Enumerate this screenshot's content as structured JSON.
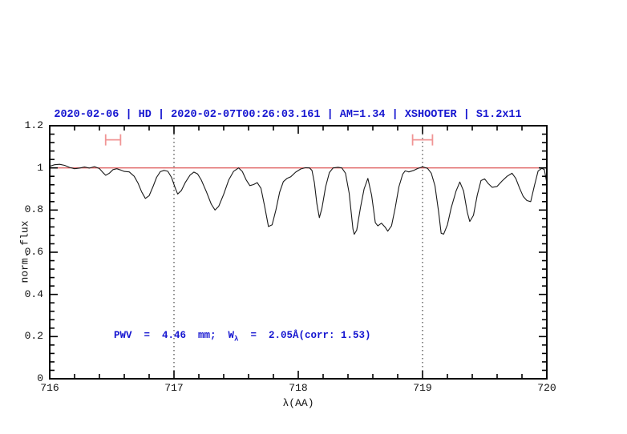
{
  "chart_data": {
    "type": "line",
    "title": "2020-02-06 | HD | 2020-02-07T00:26:03.161 | AM=1.34 | XSHOOTER | S1.2x11",
    "xlabel": "λ(AA)",
    "ylabel": "norm. flux",
    "xlim": [
      716,
      720
    ],
    "ylim": [
      0,
      1.2
    ],
    "grid": "off",
    "legend": "none",
    "x_ticks": {
      "major": [
        716,
        717,
        718,
        719,
        720
      ],
      "labels": [
        "716",
        "717",
        "718",
        "719",
        "720"
      ],
      "minor_step": 0.2
    },
    "y_ticks": {
      "major": [
        0,
        0.2,
        0.4,
        0.6,
        0.8,
        1,
        1.2
      ],
      "labels": [
        "0",
        "0.2",
        "0.4",
        "0.6",
        "0.8",
        "1",
        "1.2"
      ],
      "minor_step": 0.04
    },
    "dotted_vlines": [
      717,
      719
    ],
    "continuum_line_y": 1.0,
    "range_markers": [
      {
        "x_start": 716.45,
        "x_end": 716.57,
        "y": 1.133
      },
      {
        "x_start": 718.92,
        "x_end": 719.08,
        "y": 1.133
      }
    ],
    "annotation": {
      "text_full": "PWV  =  4.46  mm;  Wλ  =  2.05Å(corr: 1.53)",
      "pre": "PWV  =  4.46  mm;  W",
      "sub": "λ",
      "post": "  =  2.05Å(corr: 1.53)"
    },
    "colors": {
      "title_text": "#1515d0",
      "annotation_text": "#1515d0",
      "spectrum_line": "#1a1a1a",
      "continuum_line": "#e06565",
      "range_marker": "#f09595",
      "axis": "#000000",
      "dotted_line": "#444444"
    },
    "series": [
      {
        "name": "spectrum",
        "points": [
          [
            716.0,
            1.008
          ],
          [
            716.04,
            1.015
          ],
          [
            716.08,
            1.017
          ],
          [
            716.12,
            1.012
          ],
          [
            716.16,
            1.002
          ],
          [
            716.2,
            0.996
          ],
          [
            716.24,
            0.999
          ],
          [
            716.28,
            1.004
          ],
          [
            716.32,
            0.999
          ],
          [
            716.36,
            1.006
          ],
          [
            716.4,
            0.997
          ],
          [
            716.43,
            0.977
          ],
          [
            716.45,
            0.965
          ],
          [
            716.48,
            0.975
          ],
          [
            716.51,
            0.992
          ],
          [
            716.54,
            0.996
          ],
          [
            716.57,
            0.99
          ],
          [
            716.6,
            0.983
          ],
          [
            716.64,
            0.981
          ],
          [
            716.68,
            0.96
          ],
          [
            716.71,
            0.928
          ],
          [
            716.74,
            0.886
          ],
          [
            716.77,
            0.855
          ],
          [
            716.8,
            0.868
          ],
          [
            716.83,
            0.91
          ],
          [
            716.86,
            0.955
          ],
          [
            716.89,
            0.982
          ],
          [
            716.92,
            0.988
          ],
          [
            716.95,
            0.984
          ],
          [
            716.98,
            0.955
          ],
          [
            717.01,
            0.905
          ],
          [
            717.03,
            0.876
          ],
          [
            717.06,
            0.893
          ],
          [
            717.09,
            0.93
          ],
          [
            717.13,
            0.966
          ],
          [
            717.16,
            0.98
          ],
          [
            717.19,
            0.971
          ],
          [
            717.22,
            0.942
          ],
          [
            717.26,
            0.888
          ],
          [
            717.3,
            0.828
          ],
          [
            717.33,
            0.8
          ],
          [
            717.36,
            0.818
          ],
          [
            717.4,
            0.875
          ],
          [
            717.44,
            0.942
          ],
          [
            717.48,
            0.984
          ],
          [
            717.52,
            1.0
          ],
          [
            717.55,
            0.983
          ],
          [
            717.58,
            0.944
          ],
          [
            717.61,
            0.916
          ],
          [
            717.64,
            0.921
          ],
          [
            717.67,
            0.93
          ],
          [
            717.7,
            0.903
          ],
          [
            717.73,
            0.815
          ],
          [
            717.76,
            0.722
          ],
          [
            717.79,
            0.73
          ],
          [
            717.82,
            0.8
          ],
          [
            717.85,
            0.885
          ],
          [
            717.88,
            0.935
          ],
          [
            717.91,
            0.95
          ],
          [
            717.94,
            0.958
          ],
          [
            717.98,
            0.98
          ],
          [
            718.02,
            0.995
          ],
          [
            718.06,
            1.001
          ],
          [
            718.09,
            1.0
          ],
          [
            718.11,
            0.988
          ],
          [
            718.13,
            0.93
          ],
          [
            718.15,
            0.83
          ],
          [
            718.17,
            0.764
          ],
          [
            718.19,
            0.808
          ],
          [
            718.22,
            0.91
          ],
          [
            718.25,
            0.978
          ],
          [
            718.28,
            1.0
          ],
          [
            718.32,
            1.003
          ],
          [
            718.35,
            1.0
          ],
          [
            718.38,
            0.975
          ],
          [
            718.41,
            0.88
          ],
          [
            718.44,
            0.71
          ],
          [
            718.45,
            0.685
          ],
          [
            718.47,
            0.705
          ],
          [
            718.5,
            0.81
          ],
          [
            718.53,
            0.9
          ],
          [
            718.56,
            0.95
          ],
          [
            718.59,
            0.87
          ],
          [
            718.62,
            0.74
          ],
          [
            718.64,
            0.725
          ],
          [
            718.67,
            0.738
          ],
          [
            718.7,
            0.718
          ],
          [
            718.72,
            0.7
          ],
          [
            718.75,
            0.725
          ],
          [
            718.78,
            0.81
          ],
          [
            718.81,
            0.91
          ],
          [
            718.84,
            0.97
          ],
          [
            718.86,
            0.986
          ],
          [
            718.89,
            0.981
          ],
          [
            718.93,
            0.988
          ],
          [
            718.96,
            0.997
          ],
          [
            719.0,
            1.005
          ],
          [
            719.04,
            0.998
          ],
          [
            719.07,
            0.975
          ],
          [
            719.1,
            0.915
          ],
          [
            719.13,
            0.79
          ],
          [
            719.15,
            0.69
          ],
          [
            719.17,
            0.686
          ],
          [
            719.2,
            0.73
          ],
          [
            719.23,
            0.81
          ],
          [
            719.27,
            0.89
          ],
          [
            719.3,
            0.933
          ],
          [
            719.33,
            0.89
          ],
          [
            719.36,
            0.79
          ],
          [
            719.38,
            0.746
          ],
          [
            719.41,
            0.775
          ],
          [
            719.44,
            0.87
          ],
          [
            719.47,
            0.94
          ],
          [
            719.5,
            0.948
          ],
          [
            719.53,
            0.925
          ],
          [
            719.56,
            0.908
          ],
          [
            719.6,
            0.912
          ],
          [
            719.64,
            0.938
          ],
          [
            719.68,
            0.96
          ],
          [
            719.72,
            0.975
          ],
          [
            719.75,
            0.95
          ],
          [
            719.78,
            0.905
          ],
          [
            719.81,
            0.865
          ],
          [
            719.84,
            0.845
          ],
          [
            719.87,
            0.84
          ],
          [
            719.9,
            0.915
          ],
          [
            719.93,
            0.985
          ],
          [
            719.96,
            0.998
          ],
          [
            719.98,
            0.992
          ],
          [
            720.0,
            0.928
          ]
        ]
      }
    ]
  }
}
